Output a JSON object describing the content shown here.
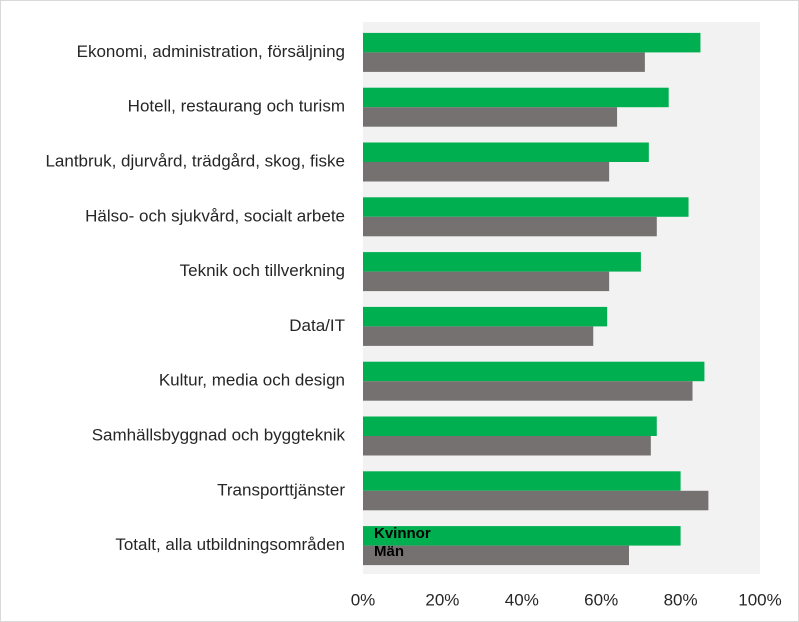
{
  "chart_data": {
    "type": "barh",
    "categories": [
      "Ekonomi, administration, försäljning",
      "Hotell, restaurang och turism",
      "Lantbruk, djurvård, trädgård, skog, fiske",
      "Hälso- och sjukvård, socialt arbete",
      "Teknik och tillverkning",
      "Data/IT",
      "Kultur, media och design",
      "Samhällsbyggnad och byggteknik",
      "Transporttjänster",
      "Totalt, alla utbildningsområden"
    ],
    "series": [
      {
        "name": "Kvinnor",
        "color": "#00b050",
        "values": [
          85,
          77,
          72,
          82,
          70,
          61.5,
          86,
          74,
          80,
          80
        ]
      },
      {
        "name": "Män",
        "color": "#767171",
        "values": [
          71,
          64,
          62,
          74,
          62,
          58,
          83,
          72.5,
          87,
          67
        ]
      }
    ],
    "xlim": [
      0,
      100
    ],
    "xticks": [
      {
        "value": 0,
        "label": "0%"
      },
      {
        "value": 20,
        "label": "20%"
      },
      {
        "value": 40,
        "label": "40%"
      },
      {
        "value": 60,
        "label": "60%"
      },
      {
        "value": 80,
        "label": "80%"
      },
      {
        "value": 100,
        "label": "100%"
      }
    ],
    "legend": "bottom-left"
  }
}
